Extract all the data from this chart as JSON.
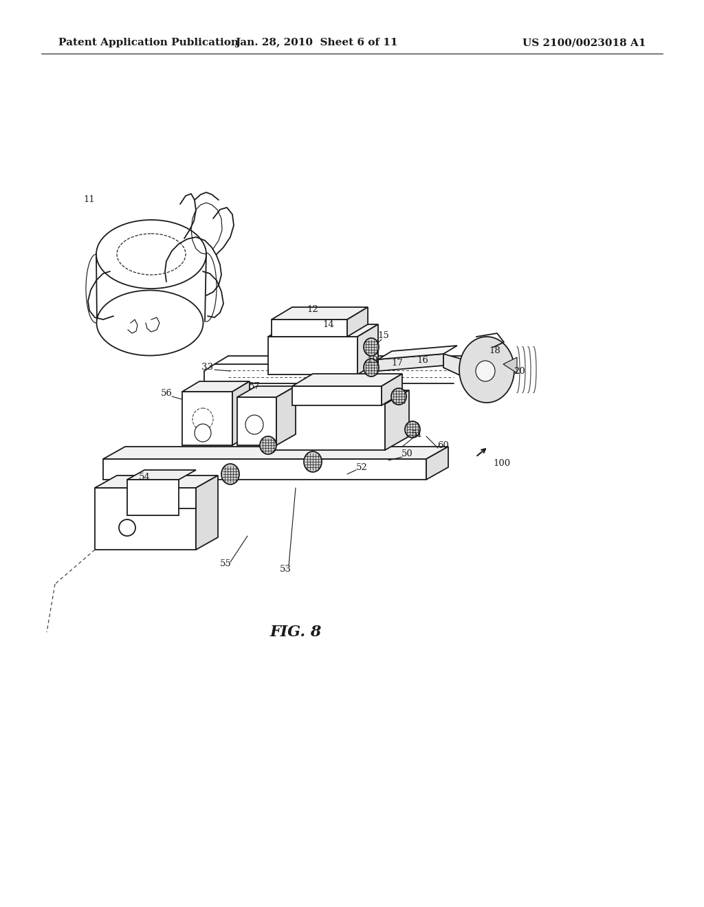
{
  "background_color": "#ffffff",
  "header_left": "Patent Application Publication",
  "header_center": "Jan. 28, 2010  Sheet 6 of 11",
  "header_right": "US 2100/0023018 A1",
  "figure_label": "FIG. 8",
  "header_fontsize": 11,
  "figure_label_fontsize": 16
}
